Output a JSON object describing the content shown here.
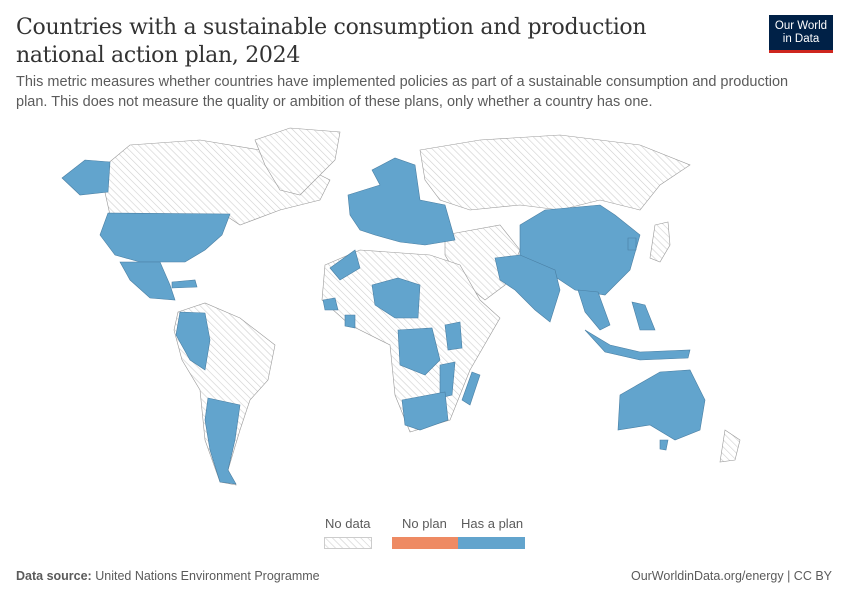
{
  "header": {
    "title": "Countries with a sustainable consumption and production national action plan, 2024",
    "subtitle": "This metric measures whether countries have implemented policies as part of a sustainable consumption and production plan. This does not measure the quality or ambition of these plans, only whether a country has one.",
    "logo": "Our World in Data"
  },
  "legend": {
    "items": [
      {
        "label": "No data",
        "color": "hatched"
      },
      {
        "label": "No plan",
        "color": "#ee8a63"
      },
      {
        "label": "Has a plan",
        "color": "#62a4cd"
      }
    ]
  },
  "colors": {
    "has_plan": "#62a4cd",
    "no_plan": "#ee8a63",
    "no_data": "#e0e0e0"
  },
  "footer": {
    "source_label": "Data source:",
    "source": "United Nations Environment Programme",
    "link": "OurWorldinData.org/energy",
    "license": "CC BY"
  }
}
